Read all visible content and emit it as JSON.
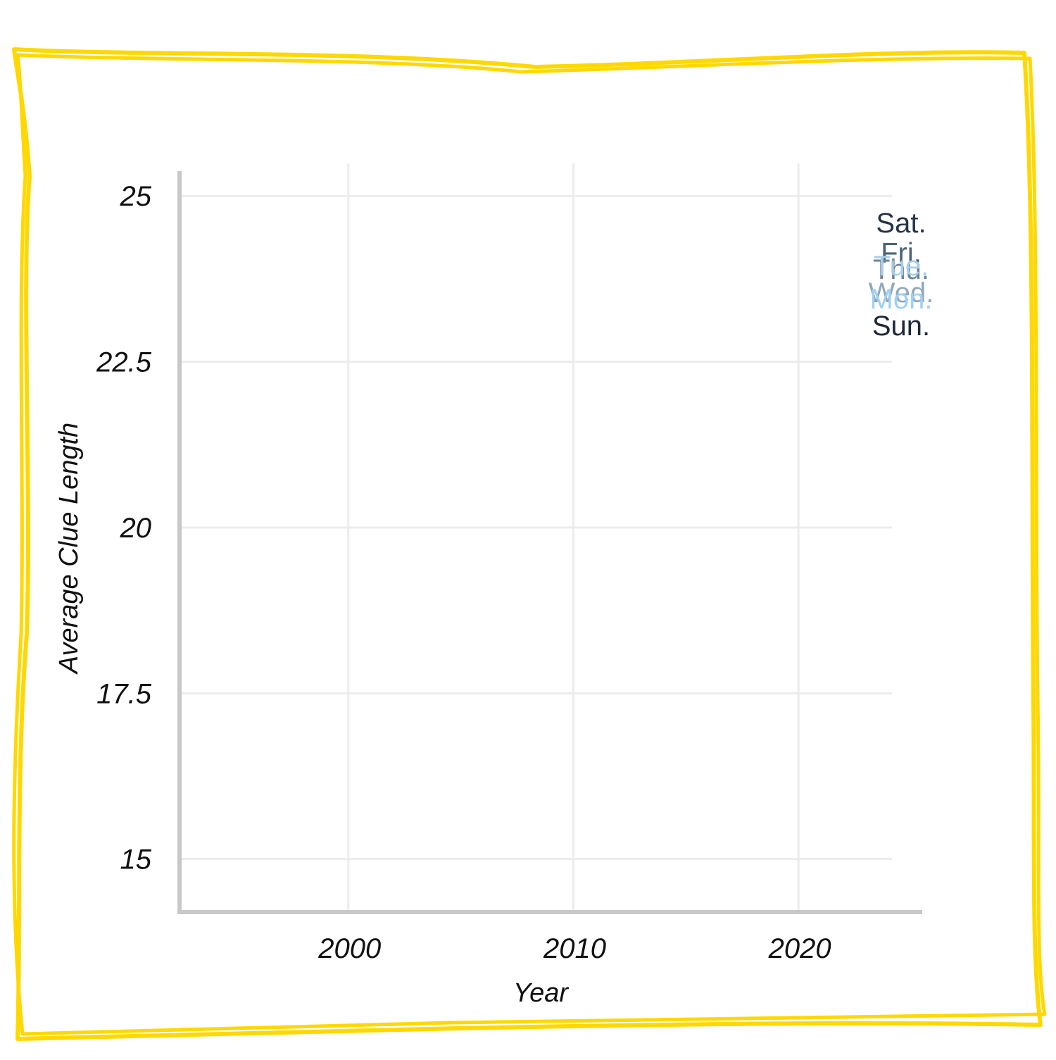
{
  "chart_data": {
    "type": "line",
    "title": "",
    "xlabel": "Year",
    "ylabel": "Average Clue Length",
    "x_ticks": [
      "2000",
      "2010",
      "2020"
    ],
    "y_ticks": [
      "15",
      "17.5",
      "20",
      "22.5",
      "25"
    ],
    "xlim": [
      1992.5,
      2025.5
    ],
    "ylim": [
      14.2,
      25.3
    ],
    "grid": true,
    "legend": "right, labels at line ends",
    "series": [
      {
        "name": "Sat.",
        "label_value": 24.6,
        "color": "#243447",
        "values": []
      },
      {
        "name": "Fri.",
        "label_value": 24.15,
        "color": "#4a6378",
        "values": []
      },
      {
        "name": "Thu.",
        "label_value": 23.9,
        "color": "#6d8599",
        "values": []
      },
      {
        "name": "Tue.",
        "label_value": 23.95,
        "color": "#a9cde8",
        "values": []
      },
      {
        "name": "Wed.",
        "label_value": 23.55,
        "color": "#8fa8bb",
        "values": []
      },
      {
        "name": "Mon.",
        "label_value": 23.45,
        "color": "#9fd0f2",
        "values": []
      },
      {
        "name": "Sun.",
        "label_value": 23.05,
        "color": "#1b2838",
        "values": []
      }
    ]
  },
  "frame": {
    "color": "#ffd800"
  }
}
